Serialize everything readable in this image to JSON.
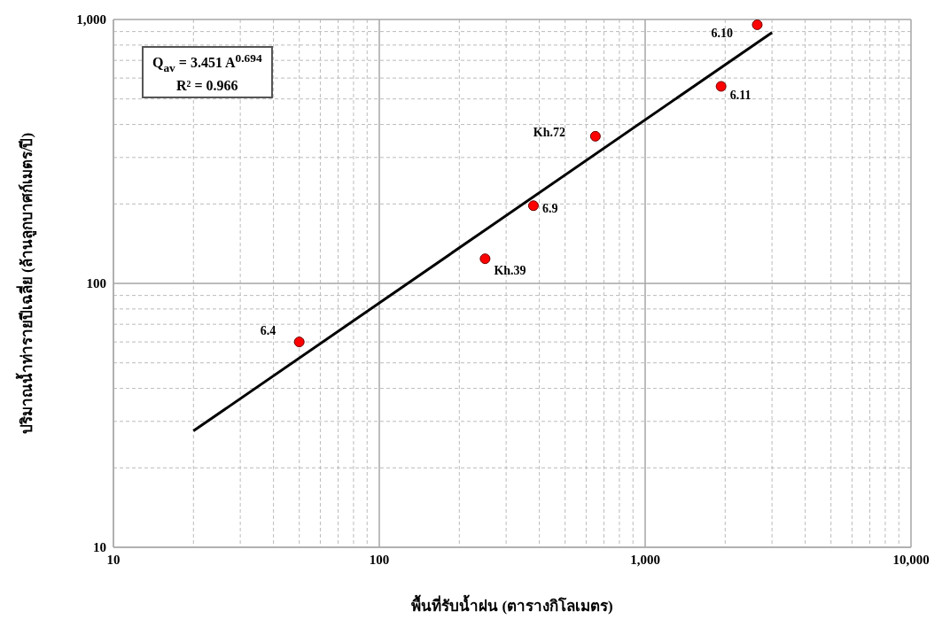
{
  "chart_data": {
    "type": "scatter",
    "xlabel": "พื้นที่รับน้ำฝน (ตารางกิโลเมตร)",
    "ylabel": "ปริมาณน้ำท่ารายปีเฉลี่ย  (ล้านลูกบาศก์เมตร/ปี)",
    "log": "xy",
    "grid": true,
    "marker": "circle",
    "xlim": [
      10,
      10000
    ],
    "ylim": [
      10,
      1000
    ],
    "xticks": [
      10,
      {
        "value": 20,
        "label": null
      },
      {
        "value": 30,
        "label": null
      },
      {
        "value": 40,
        "label": null
      },
      {
        "value": 50,
        "label": null
      },
      {
        "value": 60,
        "label": null
      },
      {
        "value": 70,
        "label": null
      },
      {
        "value": 80,
        "label": null
      },
      {
        "value": 90,
        "label": null
      },
      100,
      {
        "value": 200,
        "label": null
      },
      {
        "value": 300,
        "label": null
      },
      {
        "value": 400,
        "label": null
      },
      {
        "value": 500,
        "label": null
      },
      {
        "value": 600,
        "label": null
      },
      {
        "value": 700,
        "label": null
      },
      {
        "value": 800,
        "label": null
      },
      {
        "value": 900,
        "label": null
      },
      {
        "value": 1000,
        "label": "1,000"
      },
      {
        "value": 2000,
        "label": null
      },
      {
        "value": 3000,
        "label": null
      },
      {
        "value": 4000,
        "label": null
      },
      {
        "value": 5000,
        "label": null
      },
      {
        "value": 6000,
        "label": null
      },
      {
        "value": 7000,
        "label": null
      },
      {
        "value": 8000,
        "label": null
      },
      {
        "value": 9000,
        "label": null
      },
      {
        "value": 10000,
        "label": "10,000"
      }
    ],
    "yticks": [
      10,
      {
        "value": 20,
        "label": null
      },
      {
        "value": 30,
        "label": null
      },
      {
        "value": 40,
        "label": null
      },
      {
        "value": 50,
        "label": null
      },
      {
        "value": 60,
        "label": null
      },
      {
        "value": 70,
        "label": null
      },
      {
        "value": 80,
        "label": null
      },
      {
        "value": 90,
        "label": null
      },
      100,
      {
        "value": 200,
        "label": null
      },
      {
        "value": 300,
        "label": null
      },
      {
        "value": 400,
        "label": null
      },
      {
        "value": 500,
        "label": null
      },
      {
        "value": 600,
        "label": null
      },
      {
        "value": 700,
        "label": null
      },
      {
        "value": 800,
        "label": null
      },
      {
        "value": 900,
        "label": null
      },
      {
        "value": 1000,
        "label": "1,000"
      }
    ],
    "series": [
      {
        "color": "#ff0000",
        "x": [
          50,
          250,
          380,
          650,
          1930,
          2640
        ],
        "values": [
          60,
          124,
          197,
          361,
          558,
          955
        ]
      },
      {
        "type": "line",
        "color": "#000000",
        "marker": "none",
        "x": [
          20,
          3000
        ],
        "values": [
          27.6,
          893
        ]
      }
    ],
    "annotations": [
      "Q$_{av}$ = 3.451 A$^{0.694}$",
      "R² = 0.966",
      {
        "text": "6.4",
        "x": 50,
        "y": 60
      },
      {
        "text": "Kh.39",
        "x": 250,
        "y": 124
      },
      {
        "text": "6.9",
        "x": 380,
        "y": 197
      },
      {
        "text": "Kh.72",
        "x": 650,
        "y": 361
      },
      {
        "text": "6.11",
        "x": 1930,
        "y": 558
      },
      {
        "text": "6.10",
        "x": 2640,
        "y": 955
      }
    ]
  }
}
